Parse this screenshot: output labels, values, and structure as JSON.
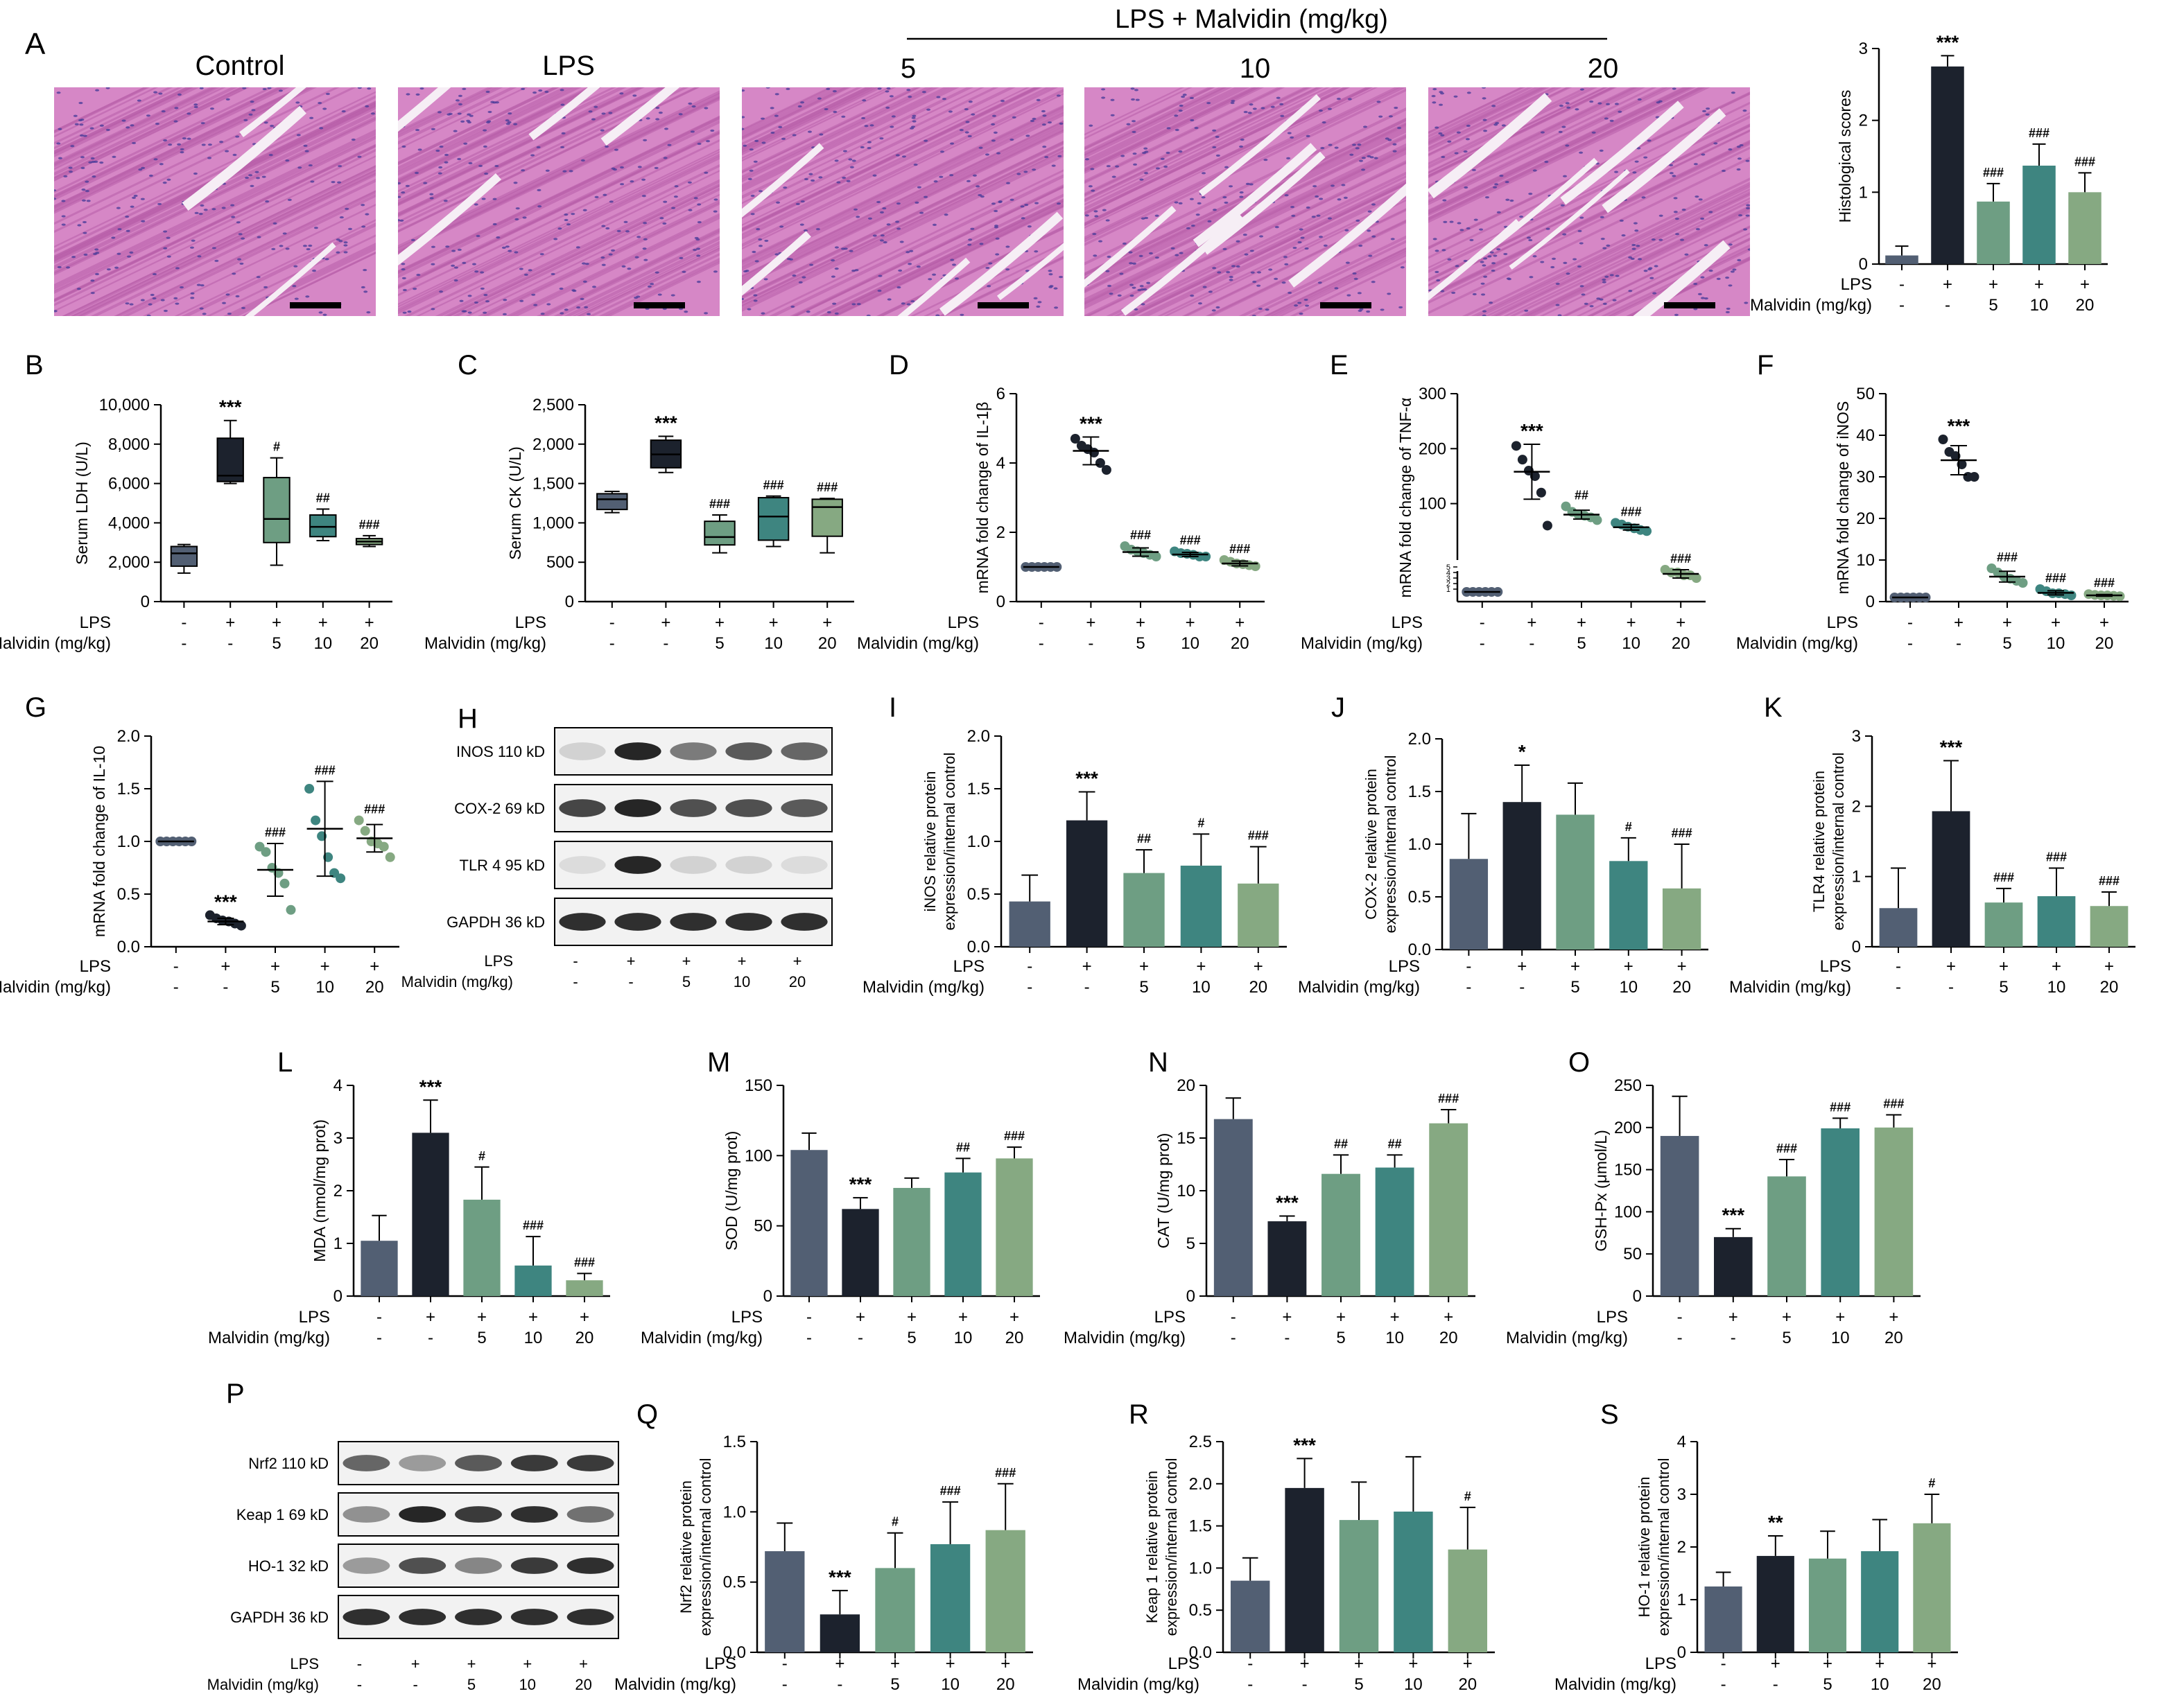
{
  "figure": {
    "lps_malvidin_header": "LPS + Malvidin (mg/kg)",
    "row_labels": [
      "LPS",
      "Malvidin (mg/kg)"
    ],
    "lps_signs": [
      "-",
      "+",
      "+",
      "+",
      "+"
    ],
    "dose_labels": [
      "-",
      "-",
      "5",
      "10",
      "20"
    ]
  },
  "colors": {
    "control": "#525f73",
    "lps": "#1c222d",
    "dose5": "#6e9e83",
    "dose10": "#3e8580",
    "dose20": "#86a982",
    "he_background": "#d687c6",
    "he_fiber": "#b85ea9",
    "he_space": "#f6eef5",
    "blot_band": "#1a1a1a"
  },
  "histology": {
    "panel_letter": "A",
    "titles": [
      "Control",
      "LPS",
      "5",
      "10",
      "20"
    ]
  },
  "blots": [
    {
      "letter": "H",
      "bands": [
        {
          "label": "INOS 110 kD",
          "intensity": [
            0.15,
            0.95,
            0.55,
            0.7,
            0.65
          ]
        },
        {
          "label": "COX-2 69 kD",
          "intensity": [
            0.8,
            0.95,
            0.75,
            0.75,
            0.7
          ]
        },
        {
          "label": "TLR 4 95 kD",
          "intensity": [
            0.1,
            0.95,
            0.15,
            0.15,
            0.1
          ]
        },
        {
          "label": "GAPDH 36 kD",
          "intensity": [
            0.9,
            0.9,
            0.9,
            0.9,
            0.9
          ]
        }
      ]
    },
    {
      "letter": "P",
      "bands": [
        {
          "label": "Nrf2 110 kD",
          "intensity": [
            0.65,
            0.4,
            0.7,
            0.85,
            0.85
          ]
        },
        {
          "label": "Keap 1 69 kD",
          "intensity": [
            0.45,
            0.95,
            0.85,
            0.9,
            0.6
          ]
        },
        {
          "label": "HO-1 32 kD",
          "intensity": [
            0.4,
            0.75,
            0.5,
            0.85,
            0.9
          ]
        },
        {
          "label": "GAPDH 36 kD",
          "intensity": [
            0.9,
            0.9,
            0.9,
            0.9,
            0.9
          ]
        }
      ]
    }
  ],
  "chart_data": [
    {
      "panel": "A",
      "type": "bar",
      "ylabel": "Histological scores",
      "ylim": [
        0,
        3
      ],
      "yticks": [
        "0",
        "1",
        "2",
        "3"
      ],
      "values": [
        0.12,
        2.75,
        0.87,
        1.37,
        1.0
      ],
      "errors": [
        0.13,
        0.15,
        0.25,
        0.3,
        0.27
      ],
      "annotations": [
        "",
        "***",
        "###",
        "###",
        "###"
      ]
    },
    {
      "panel": "B",
      "type": "box",
      "ylabel": "Serum LDH (U/L)",
      "ylim": [
        0,
        10000
      ],
      "yticks": [
        "0",
        "2,000",
        "4,000",
        "6,000",
        "8,000",
        "10,000"
      ],
      "boxes": [
        {
          "min": 1450,
          "q1": 1800,
          "median": 2450,
          "q3": 2800,
          "max": 2900
        },
        {
          "min": 6000,
          "q1": 6100,
          "median": 6400,
          "q3": 8300,
          "max": 9200
        },
        {
          "min": 1850,
          "q1": 3000,
          "median": 4200,
          "q3": 6300,
          "max": 7300
        },
        {
          "min": 3100,
          "q1": 3300,
          "median": 3800,
          "q3": 4400,
          "max": 4700
        },
        {
          "min": 2800,
          "q1": 2900,
          "median": 3050,
          "q3": 3200,
          "max": 3350
        }
      ],
      "annotations": [
        "",
        "***",
        "#",
        "##",
        "###"
      ]
    },
    {
      "panel": "C",
      "type": "box",
      "ylabel": "Serum CK (U/L)",
      "ylim": [
        0,
        2500
      ],
      "yticks": [
        "0",
        "500",
        "1,000",
        "1,500",
        "2,000",
        "2,500"
      ],
      "boxes": [
        {
          "min": 1130,
          "q1": 1170,
          "median": 1300,
          "q3": 1370,
          "max": 1400
        },
        {
          "min": 1640,
          "q1": 1700,
          "median": 1870,
          "q3": 2050,
          "max": 2100
        },
        {
          "min": 620,
          "q1": 720,
          "median": 820,
          "q3": 1020,
          "max": 1100
        },
        {
          "min": 700,
          "q1": 780,
          "median": 1080,
          "q3": 1320,
          "max": 1340
        },
        {
          "min": 620,
          "q1": 830,
          "median": 1200,
          "q3": 1300,
          "max": 1310
        }
      ],
      "annotations": [
        "",
        "***",
        "###",
        "###",
        "###"
      ]
    },
    {
      "panel": "D",
      "type": "scatter",
      "ylabel": "mRNA fold change of IL-1β",
      "ylim": [
        0,
        6
      ],
      "yticks": [
        "0",
        "2",
        "4",
        "6"
      ],
      "points": [
        [
          1,
          1,
          1,
          1,
          1,
          1
        ],
        [
          4.7,
          4.5,
          4.4,
          4.3,
          4.0,
          3.8
        ],
        [
          1.6,
          1.5,
          1.45,
          1.4,
          1.35,
          1.3
        ],
        [
          1.45,
          1.4,
          1.38,
          1.35,
          1.3,
          1.3
        ],
        [
          1.2,
          1.15,
          1.1,
          1.08,
          1.05,
          1.02
        ]
      ],
      "means": [
        1,
        4.35,
        1.43,
        1.36,
        1.1
      ],
      "sds": [
        0,
        0.4,
        0.12,
        0.06,
        0.07
      ],
      "annotations": [
        "",
        "***",
        "###",
        "###",
        "###"
      ]
    },
    {
      "panel": "E",
      "type": "scatter",
      "ylabel": "mRNA fold change of TNF-α",
      "ylim": [
        0,
        300
      ],
      "yticks": [
        "100",
        "200",
        "300"
      ],
      "ylow_ticks": [
        "1",
        "2",
        "3",
        "4",
        "5"
      ],
      "broken_axis": true,
      "points": [
        [
          1,
          1,
          1,
          1,
          1,
          1
        ],
        [
          205,
          180,
          160,
          150,
          120,
          60
        ],
        [
          95,
          85,
          80,
          78,
          75,
          70
        ],
        [
          65,
          62,
          58,
          55,
          52,
          50
        ],
        [
          9,
          8,
          8,
          7,
          7,
          6
        ]
      ],
      "means": [
        1,
        158,
        80,
        57,
        7.5
      ],
      "sds": [
        0,
        50,
        8,
        5,
        1.5
      ],
      "annotations": [
        "",
        "***",
        "##",
        "###",
        "###"
      ]
    },
    {
      "panel": "F",
      "type": "scatter",
      "ylabel": "mRNA fold change of iNOS",
      "ylim": [
        0,
        50
      ],
      "yticks": [
        "0",
        "10",
        "20",
        "30",
        "40",
        "50"
      ],
      "points": [
        [
          1,
          1,
          1,
          1,
          1,
          1
        ],
        [
          39,
          36,
          35,
          33,
          30,
          30
        ],
        [
          8,
          7,
          6,
          5.5,
          5,
          4.5
        ],
        [
          3,
          2.5,
          2,
          2,
          1.8,
          1.5
        ],
        [
          1.8,
          1.6,
          1.5,
          1.5,
          1.4,
          1.3
        ]
      ],
      "means": [
        1,
        34,
        6,
        2.1,
        1.5
      ],
      "sds": [
        0,
        3.5,
        1.3,
        0.5,
        0.2
      ],
      "annotations": [
        "",
        "***",
        "###",
        "###",
        "###"
      ]
    },
    {
      "panel": "G",
      "type": "scatter",
      "ylabel": "mRNA fold change of IL-10",
      "ylim": [
        0,
        2
      ],
      "yticks": [
        "0.0",
        "0.5",
        "1.0",
        "1.5",
        "2.0"
      ],
      "points": [
        [
          1,
          1,
          1,
          1,
          1,
          1
        ],
        [
          0.3,
          0.27,
          0.25,
          0.24,
          0.22,
          0.2
        ],
        [
          0.95,
          0.9,
          0.75,
          0.7,
          0.6,
          0.35
        ],
        [
          1.5,
          1.2,
          1.05,
          0.85,
          0.7,
          0.65
        ],
        [
          1.2,
          1.1,
          1.0,
          0.98,
          0.95,
          0.85
        ]
      ],
      "means": [
        1,
        0.24,
        0.73,
        1.12,
        1.03
      ],
      "sds": [
        0,
        0.03,
        0.25,
        0.45,
        0.13
      ],
      "annotations": [
        "",
        "***",
        "###",
        "###",
        "###"
      ]
    },
    {
      "panel": "I",
      "type": "bar",
      "ylabel": "iNOS relative protein expression/internal control",
      "ylim": [
        0,
        2
      ],
      "yticks": [
        "0.0",
        "0.5",
        "1.0",
        "1.5",
        "2.0"
      ],
      "values": [
        0.43,
        1.2,
        0.7,
        0.77,
        0.6
      ],
      "errors": [
        0.25,
        0.27,
        0.22,
        0.3,
        0.35
      ],
      "annotations": [
        "",
        "***",
        "##",
        "#",
        "###"
      ]
    },
    {
      "panel": "J",
      "type": "bar",
      "ylabel": "COX-2 relative protein expression/internal control",
      "ylim": [
        0,
        2
      ],
      "yticks": [
        "0.0",
        "0.5",
        "1.0",
        "1.5",
        "2.0"
      ],
      "values": [
        0.86,
        1.4,
        1.28,
        0.84,
        0.58
      ],
      "errors": [
        0.43,
        0.35,
        0.3,
        0.22,
        0.42
      ],
      "annotations": [
        "",
        "*",
        "",
        "#",
        "###"
      ]
    },
    {
      "panel": "K",
      "type": "bar",
      "ylabel": "TLR4 relative protein expression/internal control",
      "ylim": [
        0,
        3
      ],
      "yticks": [
        "0",
        "1",
        "2",
        "3"
      ],
      "values": [
        0.55,
        1.93,
        0.63,
        0.72,
        0.58
      ],
      "errors": [
        0.57,
        0.72,
        0.2,
        0.4,
        0.2
      ],
      "annotations": [
        "",
        "***",
        "###",
        "###",
        "###"
      ]
    },
    {
      "panel": "L",
      "type": "bar",
      "ylabel": "MDA (nmol/mg prot)",
      "ylim": [
        0,
        4
      ],
      "yticks": [
        "0",
        "1",
        "2",
        "3",
        "4"
      ],
      "values": [
        1.05,
        3.1,
        1.83,
        0.58,
        0.3
      ],
      "errors": [
        0.48,
        0.62,
        0.62,
        0.55,
        0.13
      ],
      "annotations": [
        "",
        "***",
        "#",
        "###",
        "###"
      ]
    },
    {
      "panel": "M",
      "type": "bar",
      "ylabel": "SOD (U/mg prot)",
      "ylim": [
        0,
        150
      ],
      "yticks": [
        "0",
        "50",
        "100",
        "150"
      ],
      "values": [
        104,
        62,
        77,
        88,
        98
      ],
      "errors": [
        12,
        8,
        7,
        10,
        8
      ],
      "annotations": [
        "",
        "***",
        "",
        "##",
        "###"
      ]
    },
    {
      "panel": "N",
      "type": "bar",
      "ylabel": "CAT (U/mg prot)",
      "ylim": [
        0,
        20
      ],
      "yticks": [
        "0",
        "5",
        "10",
        "15",
        "20"
      ],
      "values": [
        16.8,
        7.1,
        11.6,
        12.2,
        16.4
      ],
      "errors": [
        2.0,
        0.5,
        1.8,
        1.2,
        1.3
      ],
      "annotations": [
        "",
        "***",
        "##",
        "##",
        "###"
      ]
    },
    {
      "panel": "O",
      "type": "bar",
      "ylabel": "GSH-Px (μmol/L)",
      "ylim": [
        0,
        250
      ],
      "yticks": [
        "0",
        "50",
        "100",
        "150",
        "200",
        "250"
      ],
      "values": [
        190,
        70,
        142,
        199,
        200
      ],
      "errors": [
        47,
        10,
        20,
        12,
        15
      ],
      "annotations": [
        "",
        "***",
        "###",
        "###",
        "###"
      ]
    },
    {
      "panel": "Q",
      "type": "bar",
      "ylabel": "Nrf2 relative protein expression/internal control",
      "ylim": [
        0,
        1.5
      ],
      "yticks": [
        "0.0",
        "0.5",
        "1.0",
        "1.5"
      ],
      "values": [
        0.72,
        0.27,
        0.6,
        0.77,
        0.87
      ],
      "errors": [
        0.2,
        0.17,
        0.25,
        0.3,
        0.33
      ],
      "annotations": [
        "",
        "***",
        "#",
        "###",
        "###"
      ]
    },
    {
      "panel": "R",
      "type": "bar",
      "ylabel": "Keap 1 relative protein expression/internal control",
      "ylim": [
        0,
        2.5
      ],
      "yticks": [
        "0.0",
        "0.5",
        "1.0",
        "1.5",
        "2.0",
        "2.5"
      ],
      "values": [
        0.85,
        1.95,
        1.57,
        1.67,
        1.22
      ],
      "errors": [
        0.27,
        0.35,
        0.45,
        0.65,
        0.5
      ],
      "annotations": [
        "",
        "***",
        "",
        "",
        "#"
      ]
    },
    {
      "panel": "S",
      "type": "bar",
      "ylabel": "HO-1 relative protein expression/internal control",
      "ylim": [
        0,
        4
      ],
      "yticks": [
        "0",
        "1",
        "2",
        "3",
        "4"
      ],
      "values": [
        1.25,
        1.83,
        1.78,
        1.92,
        2.45
      ],
      "errors": [
        0.27,
        0.38,
        0.52,
        0.6,
        0.55
      ],
      "annotations": [
        "",
        "**",
        "",
        "",
        "#"
      ]
    }
  ]
}
